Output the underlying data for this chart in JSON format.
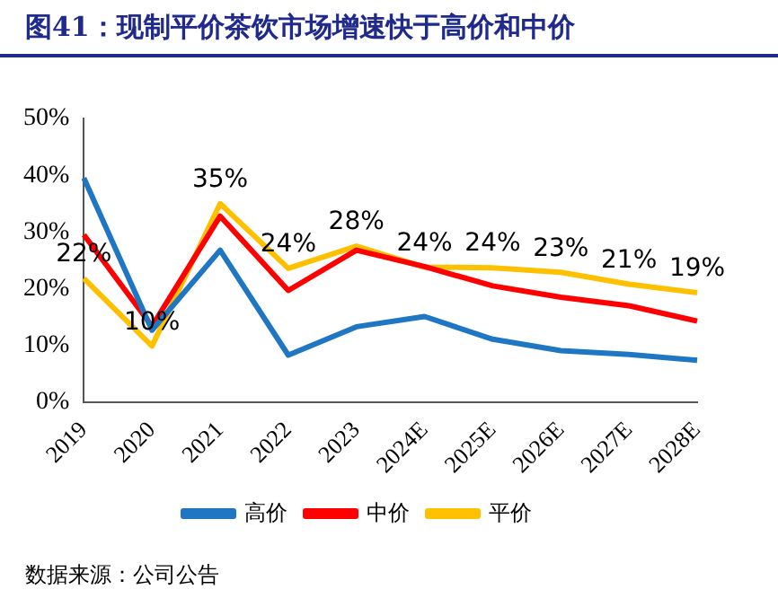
{
  "chart_data": {
    "type": "line",
    "title": "图41：现制平价茶饮市场增速快于高价和中价",
    "categories": [
      "2019",
      "2020",
      "2021",
      "2022",
      "2023",
      "2024E",
      "2025E",
      "2026E",
      "2027E",
      "2028E"
    ],
    "series": [
      {
        "name": "高价",
        "color": "#1f77c4",
        "values": [
          39.5,
          12.7,
          26.8,
          8.3,
          13.3,
          15.1,
          11.1,
          9.1,
          8.4,
          7.4
        ]
      },
      {
        "name": "中价",
        "color": "#ff0000",
        "values": [
          29.5,
          13.4,
          32.8,
          19.7,
          26.8,
          23.9,
          20.5,
          18.5,
          17.0,
          14.3
        ]
      },
      {
        "name": "平价",
        "color": "#ffc000",
        "values": [
          21.8,
          9.9,
          35,
          23.6,
          27.5,
          23.8,
          23.7,
          22.9,
          20.8,
          19.3
        ],
        "value_labels": [
          "22%",
          "10%",
          "35%",
          "24%",
          "28%",
          "24%",
          "24%",
          "23%",
          "21%",
          "19%"
        ]
      }
    ],
    "ylim": [
      0,
      50
    ],
    "yticks": [
      {
        "value": 0,
        "label": "0%"
      },
      {
        "value": 10,
        "label": "10%"
      },
      {
        "value": 20,
        "label": "20%"
      },
      {
        "value": 30,
        "label": "30%"
      },
      {
        "value": 40,
        "label": "40%"
      },
      {
        "value": 50,
        "label": "50%"
      }
    ],
    "grid": false,
    "legend": "bottom",
    "marker": "none",
    "line_style": "solid",
    "annotations": [
      "数据来源：公司公告"
    ]
  }
}
